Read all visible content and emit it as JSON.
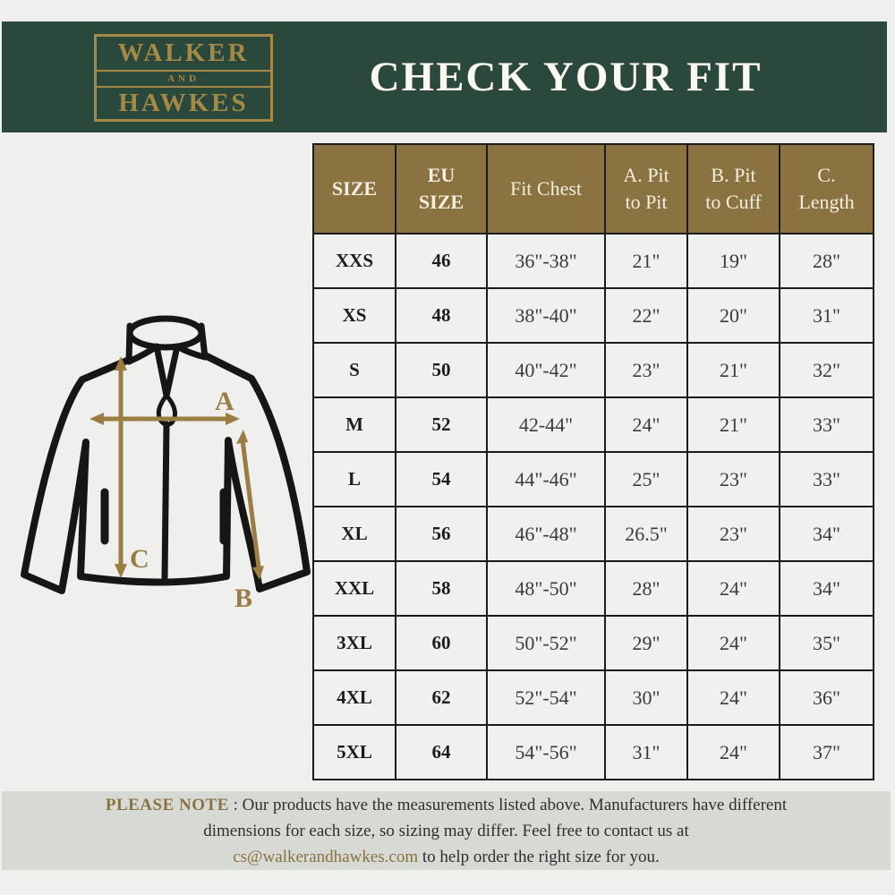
{
  "header": {
    "logo": {
      "line1": "WALKER",
      "line2": "AND",
      "line3": "HAWKES"
    },
    "title": "CHECK YOUR FIT"
  },
  "diagram": {
    "label_a": "A",
    "label_b": "B",
    "label_c": "C"
  },
  "size_chart": {
    "columns": [
      "SIZE",
      "EU\nSIZE",
      "Fit Chest",
      "A. Pit\nto Pit",
      "B. Pit\nto Cuff",
      "C.\nLength"
    ],
    "rows": [
      [
        "XXS",
        "46",
        "36\"-38\"",
        "21\"",
        "19\"",
        "28\""
      ],
      [
        "XS",
        "48",
        "38\"-40\"",
        "22\"",
        "20\"",
        "31\""
      ],
      [
        "S",
        "50",
        "40\"-42\"",
        "23\"",
        "21\"",
        "32\""
      ],
      [
        "M",
        "52",
        "42-44\"",
        "24\"",
        "21\"",
        "33\""
      ],
      [
        "L",
        "54",
        "44\"-46\"",
        "25\"",
        "23\"",
        "33\""
      ],
      [
        "XL",
        "56",
        "46\"-48\"",
        "26.5\"",
        "23\"",
        "34\""
      ],
      [
        "XXL",
        "58",
        "48\"-50\"",
        "28\"",
        "24\"",
        "34\""
      ],
      [
        "3XL",
        "60",
        "50\"-52\"",
        "29\"",
        "24\"",
        "35\""
      ],
      [
        "4XL",
        "62",
        "52\"-54\"",
        "30\"",
        "24\"",
        "36\""
      ],
      [
        "5XL",
        "64",
        "54\"-56\"",
        "31\"",
        "24\"",
        "37\""
      ]
    ]
  },
  "footer": {
    "label": "PLEASE NOTE",
    "separator": " : ",
    "text1": "Our products have the measurements listed above. Manufacturers have different\ndimensions for each size, so sizing may differ. Feel free to contact us at\n",
    "email": "cs@walkerandhawkes.com",
    "text2": " to help order the right size for you."
  },
  "colors": {
    "brand_green": "#2B483C",
    "table_header_gold": "#8A7341",
    "logo_gold": "#A58945",
    "arrow_gold": "#9B7D43",
    "header_text_cream": "#F3EEDD",
    "note_bar_bg": "#D7D9D5"
  }
}
